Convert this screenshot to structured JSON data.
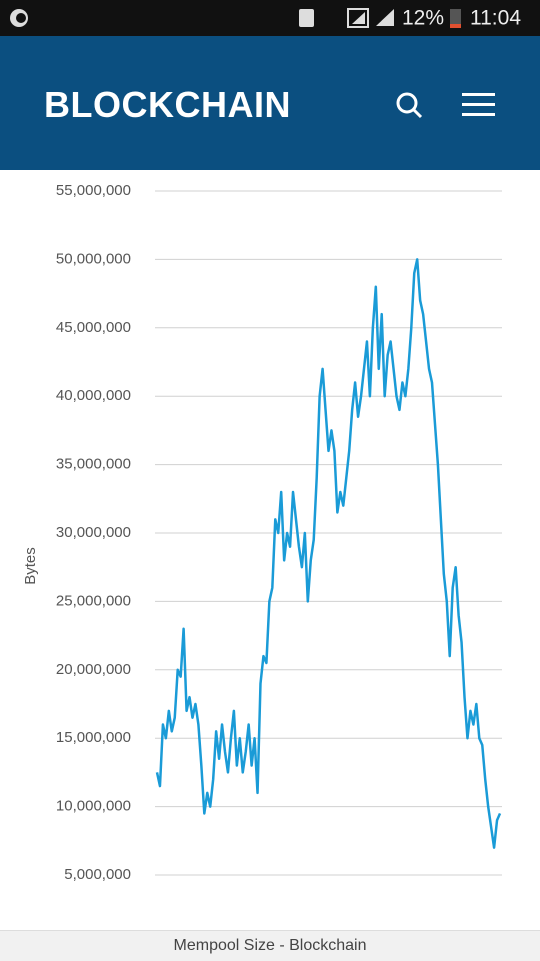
{
  "status_bar": {
    "battery": "12%",
    "time": "11:04"
  },
  "header": {
    "title": "BLOCKCHAIN"
  },
  "footer": {
    "title": "Mempool Size - Blockchain"
  },
  "chart_data": {
    "type": "line",
    "y_label": "Bytes",
    "color": "#1a9bd7",
    "grid": true,
    "ylim": [
      5000000,
      55000000
    ],
    "yticks": [
      {
        "value": 5000000,
        "label": "5,000,000"
      },
      {
        "value": 10000000,
        "label": "10,000,000"
      },
      {
        "value": 15000000,
        "label": "15,000,000"
      },
      {
        "value": 20000000,
        "label": "20,000,000"
      },
      {
        "value": 25000000,
        "label": "25,000,000"
      },
      {
        "value": 30000000,
        "label": "30,000,000"
      },
      {
        "value": 35000000,
        "label": "35,000,000"
      },
      {
        "value": 40000000,
        "label": "40,000,000"
      },
      {
        "value": 45000000,
        "label": "45,000,000"
      },
      {
        "value": 50000000,
        "label": "50,000,000"
      },
      {
        "value": 55000000,
        "label": "55,000,000"
      }
    ],
    "values": [
      12500000,
      11500000,
      16000000,
      15000000,
      17000000,
      15500000,
      16500000,
      20000000,
      19500000,
      23000000,
      17000000,
      18000000,
      16500000,
      17500000,
      16000000,
      13000000,
      9500000,
      11000000,
      10000000,
      12000000,
      15500000,
      13500000,
      16000000,
      14000000,
      12500000,
      15000000,
      17000000,
      13000000,
      15000000,
      12500000,
      14000000,
      16000000,
      13000000,
      15000000,
      11000000,
      19000000,
      21000000,
      20500000,
      25000000,
      26000000,
      31000000,
      30000000,
      33000000,
      28000000,
      30000000,
      29000000,
      33000000,
      31000000,
      29000000,
      27500000,
      30000000,
      25000000,
      28000000,
      29500000,
      34000000,
      40000000,
      42000000,
      39000000,
      36000000,
      37500000,
      36000000,
      31500000,
      33000000,
      32000000,
      34000000,
      36000000,
      39000000,
      41000000,
      38500000,
      40000000,
      42000000,
      44000000,
      40000000,
      45000000,
      48000000,
      42000000,
      46000000,
      40000000,
      43000000,
      44000000,
      42000000,
      40000000,
      39000000,
      41000000,
      40000000,
      42000000,
      45000000,
      49000000,
      50000000,
      47000000,
      46000000,
      44000000,
      42000000,
      41000000,
      38000000,
      35000000,
      31000000,
      27000000,
      25000000,
      21000000,
      26000000,
      27500000,
      24000000,
      22000000,
      18000000,
      15000000,
      17000000,
      16000000,
      17500000,
      15000000,
      14500000,
      12000000,
      10000000,
      8500000,
      7000000,
      9000000,
      9500000
    ]
  }
}
